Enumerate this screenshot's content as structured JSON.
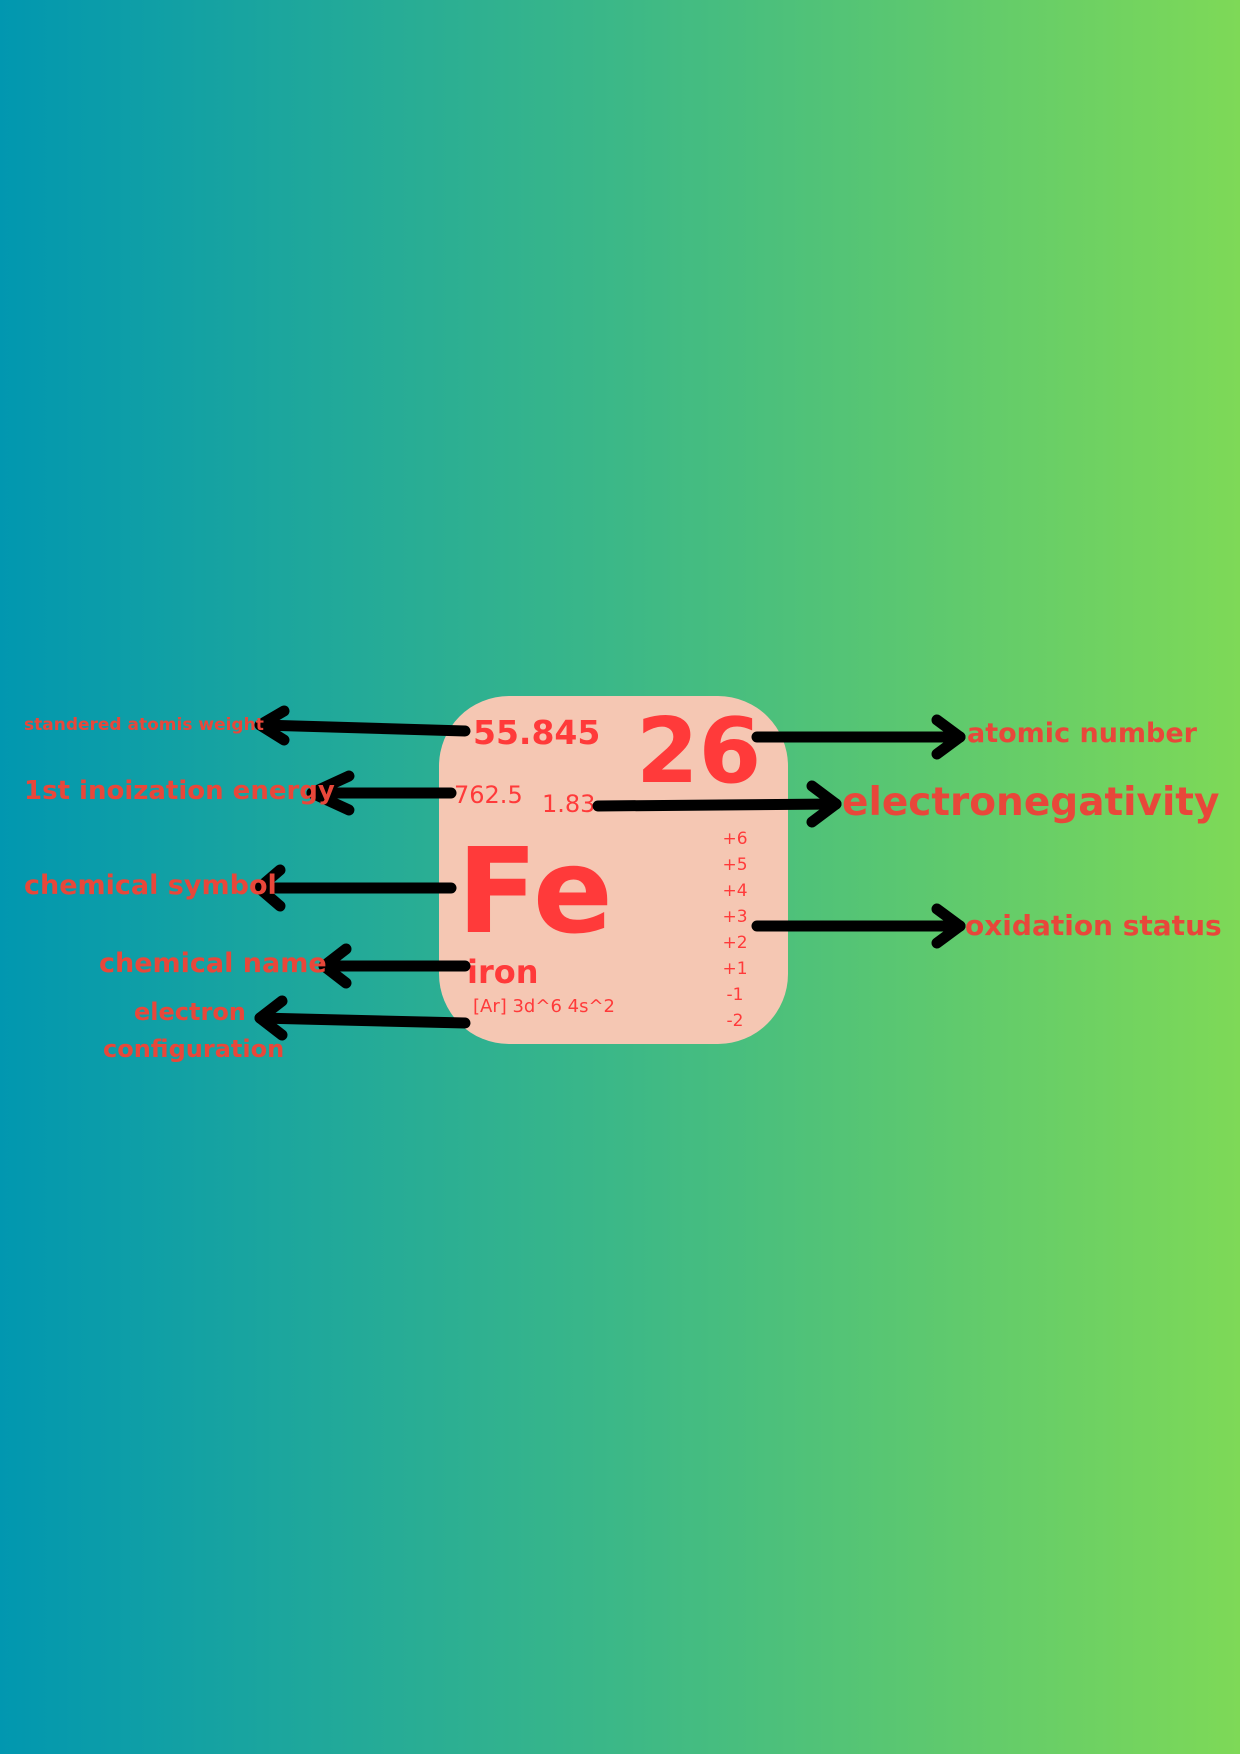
{
  "colors": {
    "gradient_start": "#0197b0",
    "gradient_mid": "#3cb887",
    "gradient_end": "#7ed957",
    "tile": "#f5c7b3",
    "text": "#ff3a3a",
    "label_text": "#e8473a",
    "arrow": "#000000"
  },
  "element": {
    "atomic_weight": "55.845",
    "atomic_number": "26",
    "ionization_energy": "762.5",
    "electronegativity": "1.83",
    "symbol": "Fe",
    "name": "iron",
    "electron_configuration": "[Ar] 3d^6 4s^2",
    "oxidation_states": [
      "+6",
      "+5",
      "+4",
      "+3",
      "+2",
      "+1",
      "-1",
      "-2"
    ]
  },
  "labels": {
    "atomic_weight": "standered atomis weight",
    "ionization_energy": "1st inoization energy",
    "chemical_symbol": "chemical symbol",
    "chemical_name": "chemical name",
    "electron_configuration_line1": "electron",
    "electron_configuration_line2": "configuration",
    "atomic_number": "atomic number",
    "electronegativity": "electronegativity",
    "oxidation_status": "oxidation status"
  }
}
